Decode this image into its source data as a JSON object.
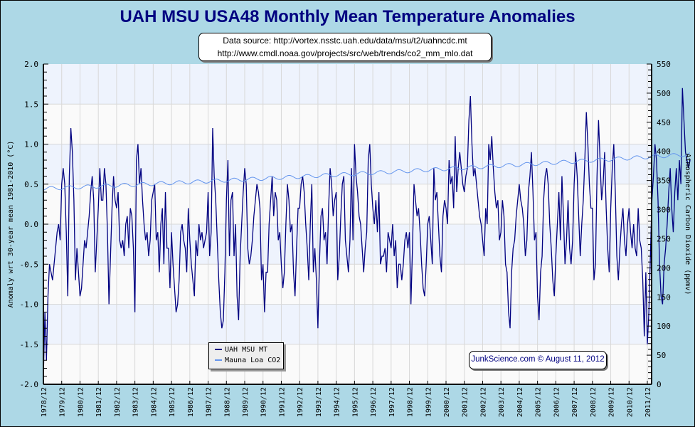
{
  "title": "UAH MSU USA48 Monthly Mean Temperature Anomalies",
  "source_lines": [
    "Data source: http://vortex.nsstc.uah.edu/data/msu/t2/uahncdc.mt",
    "http://www.cmdl.noaa.gov/projects/src/web/trends/co2_mm_mlo.dat"
  ],
  "credit": "JunkScience.com © August 11, 2012",
  "colors": {
    "background": "#add8e6",
    "plot_band_a": "#eef3fd",
    "plot_band_b": "#fafafa",
    "temperature_line": "#000080",
    "co2_line": "#6495ed",
    "grid": "#d8d8d8"
  },
  "chart_data": {
    "type": "line",
    "title": "UAH MSU USA48 Monthly Mean Temperature Anomalies",
    "xlabel": "",
    "ylabel": "Anomaly wrt 30-year mean 1981-2010 (°C)",
    "y2label": "Atmospheric Carbon Dioxide (ppmv)",
    "ylim": [
      -2.0,
      2.0
    ],
    "y2lim": [
      0,
      550
    ],
    "yticks": [
      "-2.0",
      "-1.5",
      "-1.0",
      "-0.5",
      "0.0",
      "0.5",
      "1.0",
      "1.5",
      "2.0"
    ],
    "y2ticks": [
      "0",
      "50",
      "100",
      "150",
      "200",
      "250",
      "300",
      "350",
      "400",
      "450",
      "500",
      "550"
    ],
    "xticks": [
      "1978/12",
      "1979/12",
      "1980/12",
      "1981/12",
      "1982/12",
      "1983/12",
      "1984/12",
      "1985/12",
      "1986/12",
      "1987/12",
      "1988/12",
      "1989/12",
      "1990/12",
      "1991/12",
      "1992/12",
      "1993/12",
      "1994/12",
      "1995/12",
      "1996/12",
      "1997/12",
      "1998/12",
      "1999/12",
      "2000/12",
      "2001/12",
      "2002/12",
      "2003/12",
      "2004/12",
      "2005/12",
      "2006/12",
      "2007/12",
      "2008/12",
      "2009/12",
      "2010/12",
      "2011/12"
    ],
    "grid": true,
    "legend": {
      "position": "bottom-center",
      "entries": [
        "UAH MSU MT",
        "Mauna Loa CO2"
      ]
    },
    "x_start": "1978/12",
    "x_step": "month",
    "series": [
      {
        "name": "UAH MSU MT",
        "axis": "left",
        "values": [
          -1.9,
          -1.1,
          -1.7,
          -0.9,
          -0.5,
          -0.6,
          -0.7,
          -0.5,
          -0.3,
          -0.1,
          0.0,
          -0.2,
          0.5,
          0.7,
          0.5,
          -0.1,
          -0.9,
          0.6,
          1.2,
          0.9,
          0.3,
          -0.7,
          -0.3,
          -0.6,
          -0.9,
          -0.8,
          -0.5,
          -0.2,
          -0.3,
          -0.1,
          0.1,
          0.4,
          0.6,
          0.3,
          -0.6,
          -0.2,
          0.2,
          0.7,
          0.3,
          0.3,
          0.7,
          0.5,
          -0.1,
          -1.0,
          -0.4,
          0.2,
          0.6,
          0.3,
          0.2,
          0.4,
          -0.2,
          -0.3,
          -0.2,
          -0.4,
          0.0,
          0.1,
          -0.3,
          0.2,
          0.1,
          -0.3,
          -1.1,
          0.8,
          1.0,
          0.5,
          0.7,
          0.3,
          0.0,
          -0.2,
          -0.1,
          -0.4,
          -0.2,
          0.3,
          0.4,
          0.5,
          -0.2,
          -0.1,
          -0.6,
          0.0,
          0.2,
          -0.5,
          0.4,
          -0.3,
          -0.3,
          -0.8,
          -0.1,
          -0.5,
          -0.8,
          -1.1,
          -1.0,
          -0.7,
          -0.1,
          0.0,
          -0.2,
          -0.3,
          -0.6,
          0.2,
          -0.2,
          -0.5,
          -0.7,
          -0.9,
          -0.2,
          -0.4,
          0.0,
          -0.2,
          -0.1,
          -0.3,
          -0.2,
          -0.1,
          0.4,
          -0.4,
          -0.1,
          1.2,
          0.6,
          0.3,
          -0.2,
          -0.7,
          -1.1,
          -1.3,
          -1.2,
          -0.6,
          0.3,
          0.8,
          -0.4,
          0.3,
          0.4,
          -0.4,
          0.0,
          -0.9,
          -1.2,
          -0.4,
          0.0,
          0.4,
          0.7,
          0.5,
          -0.3,
          -0.5,
          -0.4,
          -0.2,
          0.1,
          0.3,
          0.5,
          0.4,
          0.2,
          -0.7,
          -0.5,
          -1.1,
          -0.6,
          -0.6,
          0.0,
          0.3,
          0.6,
          0.1,
          0.4,
          0.3,
          -0.2,
          -0.1,
          -0.5,
          -0.8,
          -0.6,
          0.0,
          0.5,
          0.3,
          -0.1,
          0.0,
          -0.6,
          -0.9,
          -0.3,
          0.2,
          0.2,
          0.5,
          0.6,
          0.4,
          0.0,
          -0.3,
          -0.7,
          0.0,
          0.5,
          -0.6,
          -0.3,
          -0.7,
          -1.3,
          -0.5,
          0.1,
          0.2,
          -0.2,
          -0.1,
          -0.5,
          0.2,
          0.7,
          0.5,
          0.1,
          0.3,
          0.4,
          -0.7,
          -0.4,
          0.1,
          0.5,
          0.6,
          -0.2,
          -0.4,
          -0.6,
          -0.2,
          0.7,
          -0.2,
          1.0,
          0.6,
          0.4,
          0.1,
          0.0,
          -0.3,
          -0.6,
          -0.3,
          -0.1,
          0.8,
          1.0,
          0.5,
          0.2,
          0.0,
          0.3,
          -0.1,
          0.4,
          -0.5,
          -0.4,
          -0.4,
          -0.3,
          -0.6,
          -0.1,
          -0.2,
          -0.3,
          0.0,
          -0.4,
          -0.2,
          -0.8,
          -0.5,
          -0.5,
          -0.7,
          -0.5,
          -0.2,
          -0.1,
          -0.3,
          -0.1,
          -1.0,
          -0.3,
          0.5,
          0.3,
          0.1,
          0.2,
          -0.1,
          -0.5,
          -0.8,
          -0.9,
          -0.5,
          0.0,
          0.1,
          -0.2,
          -0.5,
          0.7,
          0.3,
          0.4,
          0.0,
          -0.4,
          -0.6,
          0.1,
          0.3,
          0.2,
          0.0,
          0.8,
          0.5,
          0.6,
          0.2,
          1.1,
          0.4,
          0.7,
          0.9,
          0.7,
          0.5,
          0.4,
          0.6,
          0.7,
          1.3,
          1.6,
          1.0,
          0.6,
          0.7,
          0.5,
          0.3,
          0.1,
          0.0,
          -0.2,
          -0.4,
          0.2,
          0.0,
          1.0,
          0.8,
          1.1,
          0.7,
          0.4,
          0.2,
          0.3,
          -0.2,
          -0.1,
          0.3,
          0.1,
          -0.5,
          -0.6,
          -1.1,
          -1.3,
          -0.6,
          -0.3,
          -0.2,
          0.1,
          0.3,
          0.5,
          0.3,
          0.2,
          0.0,
          -0.4,
          -0.2,
          0.4,
          0.6,
          0.9,
          0.4,
          -0.2,
          -0.1,
          -0.9,
          -1.2,
          -0.6,
          -0.4,
          0.3,
          0.6,
          0.7,
          0.5,
          0.0,
          -0.3,
          -0.7,
          -0.9,
          -0.4,
          0.0,
          0.4,
          -0.2,
          0.6,
          0.1,
          -0.5,
          -0.2,
          0.3,
          -0.3,
          -0.5,
          -0.2,
          0.5,
          0.9,
          0.6,
          0.1,
          -0.4,
          0.0,
          0.3,
          0.8,
          1.4,
          1.0,
          0.5,
          0.2,
          0.2,
          -0.7,
          -0.5,
          0.6,
          1.3,
          0.8,
          0.3,
          0.5,
          0.9,
          0.2,
          -0.3,
          -0.6,
          0.2,
          0.7,
          1.0,
          0.4,
          -0.4,
          -0.7,
          -0.3,
          0.0,
          0.2,
          -0.2,
          -0.4,
          0.0,
          0.2,
          -0.1,
          -0.3,
          0.0,
          -0.3,
          -0.4,
          0.2,
          -0.2,
          -0.3,
          -0.7,
          -1.4,
          -0.6,
          -1.5,
          -1.1,
          -0.4,
          0.3,
          0.6,
          1.0,
          0.8,
          0.3,
          -0.5,
          -0.9,
          -1.0,
          -0.5,
          -0.3,
          0.0,
          0.4,
          0.7,
          0.2,
          -0.1,
          0.4,
          0.7,
          0.3,
          0.8,
          0.5,
          1.7,
          1.3,
          0.9,
          0.8,
          0.7,
          0.8
        ]
      },
      {
        "name": "Mauna Loa CO2",
        "axis": "right",
        "start_ppmv": 336,
        "end_ppmv": 395,
        "seasonal_amplitude_ppmv": 3.2,
        "note": "smooth monthly series with annual cycle"
      }
    ]
  }
}
